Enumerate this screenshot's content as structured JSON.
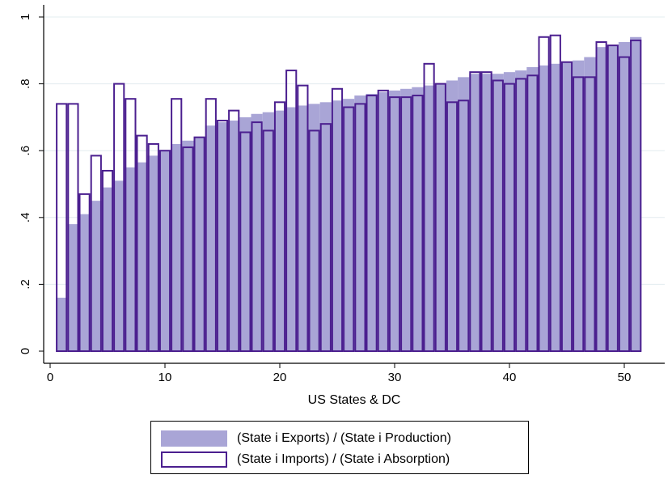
{
  "chart_data": {
    "type": "bar",
    "title": "",
    "xlabel": "US States & DC",
    "ylabel": "",
    "xlim": [
      0,
      52
    ],
    "ylim": [
      0,
      1
    ],
    "grid": true,
    "legend_position": "bottom",
    "x": [
      1,
      2,
      3,
      4,
      5,
      6,
      7,
      8,
      9,
      10,
      11,
      12,
      13,
      14,
      15,
      16,
      17,
      18,
      19,
      20,
      21,
      22,
      23,
      24,
      25,
      26,
      27,
      28,
      29,
      30,
      31,
      32,
      33,
      34,
      35,
      36,
      37,
      38,
      39,
      40,
      41,
      42,
      43,
      44,
      45,
      46,
      47,
      48,
      49,
      50,
      51
    ],
    "x_ticks": [
      0,
      10,
      20,
      30,
      40,
      50
    ],
    "x_tick_labels": [
      "0",
      "10",
      "20",
      "30",
      "40",
      "50"
    ],
    "y_ticks": [
      0,
      0.2,
      0.4,
      0.6,
      0.8,
      1
    ],
    "y_tick_labels": [
      "0",
      ".2",
      ".4",
      ".6",
      ".8",
      "1"
    ],
    "series": [
      {
        "name": "(State i Exports) / (State i Production)",
        "style": "filled",
        "color": "#a9a5d6",
        "values": [
          0.16,
          0.38,
          0.41,
          0.45,
          0.49,
          0.51,
          0.55,
          0.565,
          0.585,
          0.6,
          0.62,
          0.63,
          0.64,
          0.675,
          0.685,
          0.69,
          0.7,
          0.71,
          0.715,
          0.72,
          0.73,
          0.735,
          0.74,
          0.745,
          0.75,
          0.755,
          0.765,
          0.77,
          0.775,
          0.78,
          0.785,
          0.79,
          0.795,
          0.8,
          0.81,
          0.82,
          0.83,
          0.83,
          0.83,
          0.835,
          0.84,
          0.85,
          0.855,
          0.86,
          0.865,
          0.87,
          0.88,
          0.91,
          0.915,
          0.925,
          0.94
        ]
      },
      {
        "name": "(State i Imports) / (State i Absorption)",
        "style": "outline",
        "color": "#4b1f8f",
        "values": [
          0.74,
          0.74,
          0.47,
          0.585,
          0.54,
          0.8,
          0.755,
          0.645,
          0.62,
          0.6,
          0.755,
          0.61,
          0.64,
          0.755,
          0.69,
          0.72,
          0.655,
          0.685,
          0.66,
          0.745,
          0.84,
          0.795,
          0.66,
          0.68,
          0.785,
          0.73,
          0.74,
          0.765,
          0.78,
          0.76,
          0.76,
          0.765,
          0.86,
          0.8,
          0.745,
          0.75,
          0.835,
          0.835,
          0.81,
          0.8,
          0.815,
          0.825,
          0.94,
          0.945,
          0.865,
          0.82,
          0.82,
          0.925,
          0.915,
          0.88,
          0.93
        ]
      }
    ]
  }
}
